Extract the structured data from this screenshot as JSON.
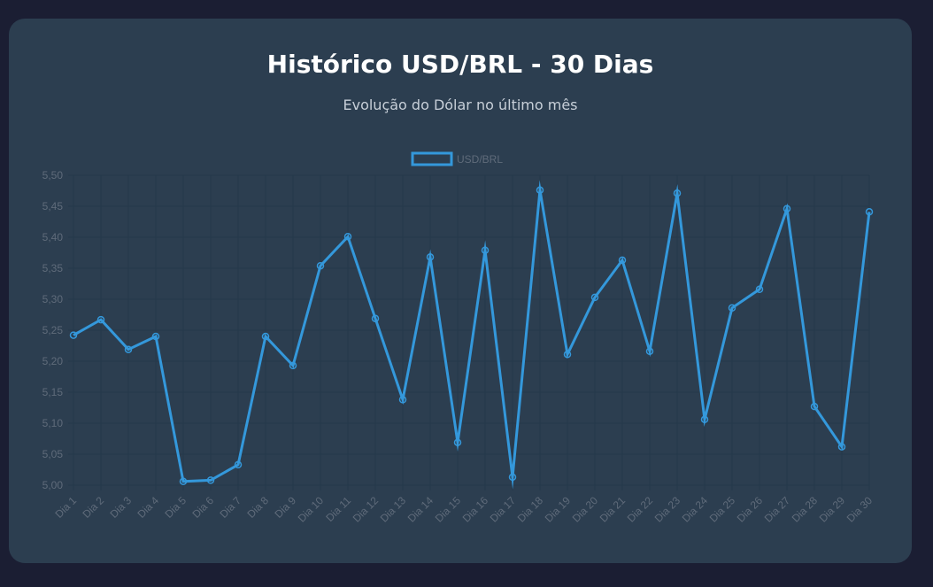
{
  "header": {
    "title": "Histórico USD/BRL - 30 Dias",
    "subtitle": "Evolução do Dólar no último mês"
  },
  "colors": {
    "background": "#1b1e33",
    "card": "#2c3e50",
    "line": "#3498db",
    "grid": "#24384a",
    "tick": "#5f6b7a"
  },
  "chart_data": {
    "type": "line",
    "legend": {
      "position": "top",
      "items": [
        "USD/BRL"
      ]
    },
    "categories": [
      "Dia 1",
      "Dia 2",
      "Dia 3",
      "Dia 4",
      "Dia 5",
      "Dia 6",
      "Dia 7",
      "Dia 8",
      "Dia 9",
      "Dia 10",
      "Dia 11",
      "Dia 12",
      "Dia 13",
      "Dia 14",
      "Dia 15",
      "Dia 16",
      "Dia 17",
      "Dia 18",
      "Dia 19",
      "Dia 20",
      "Dia 21",
      "Dia 22",
      "Dia 23",
      "Dia 24",
      "Dia 25",
      "Dia 26",
      "Dia 27",
      "Dia 28",
      "Dia 29",
      "Dia 30"
    ],
    "series": [
      {
        "name": "USD/BRL",
        "values": [
          5.242,
          5.267,
          5.219,
          5.24,
          5.006,
          5.008,
          5.033,
          5.24,
          5.193,
          5.354,
          5.401,
          5.269,
          5.138,
          5.368,
          5.069,
          5.379,
          5.013,
          5.476,
          5.211,
          5.303,
          5.363,
          5.216,
          5.471,
          5.106,
          5.286,
          5.316,
          5.446,
          5.127,
          5.062,
          5.441
        ]
      }
    ],
    "ylim": [
      5.0,
      5.5
    ],
    "yticks": [
      "5,00",
      "5,05",
      "5,10",
      "5,15",
      "5,20",
      "5,25",
      "5,30",
      "5,35",
      "5,40",
      "5,45",
      "5,50"
    ],
    "grid": true
  }
}
